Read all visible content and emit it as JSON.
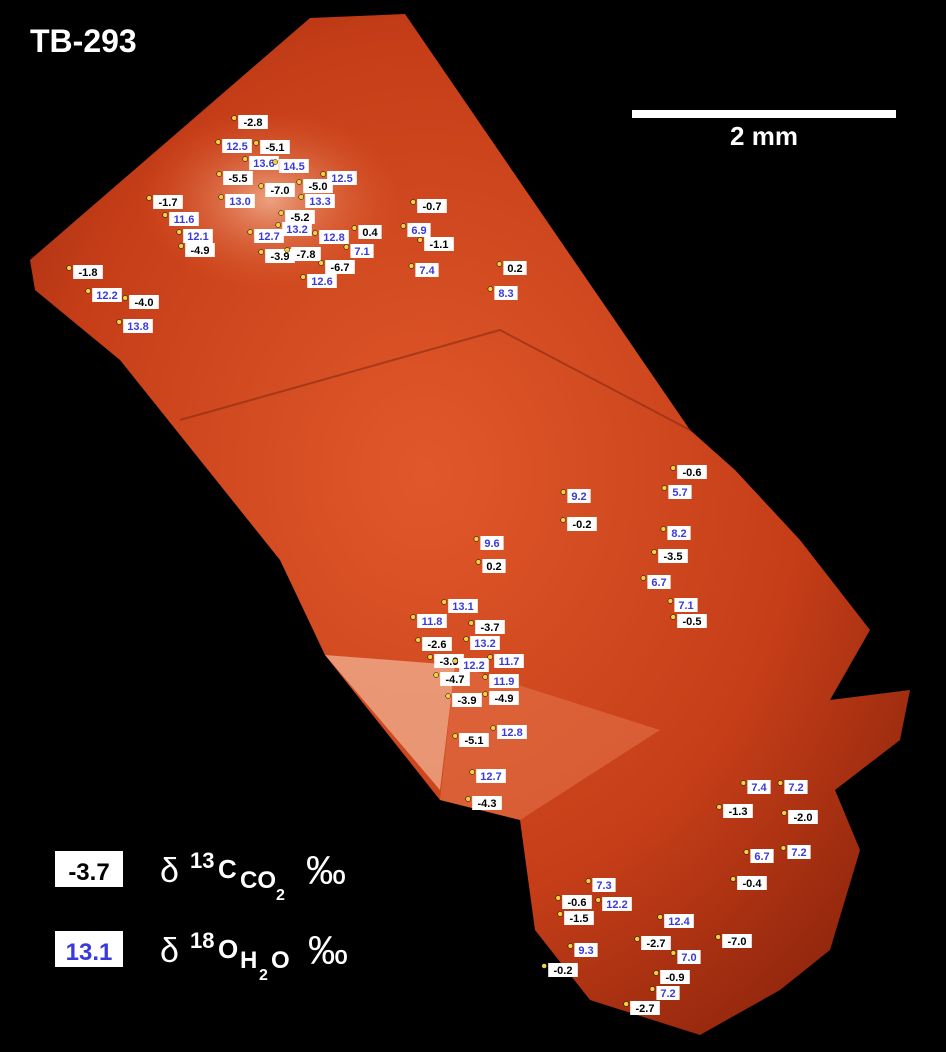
{
  "title": "TB-293",
  "scale_bar": "2 mm",
  "legend": {
    "carbon": {
      "sample": "-3.7",
      "symbol": "δ",
      "isotope": "13",
      "element": "C",
      "species": [
        "CO",
        "2"
      ],
      "unit": "‰"
    },
    "oxygen": {
      "sample": "13.1",
      "symbol": "δ",
      "isotope": "18",
      "element": "O",
      "species": [
        "H",
        "2",
        "O"
      ],
      "unit": "‰"
    }
  },
  "carbon_labels": [
    "-2.8",
    "-5.1",
    "-5.5",
    "-7.0",
    "-5.0",
    "-1.7",
    "-5.2",
    "0.4",
    "-3.9",
    "-7.8",
    "-6.7",
    "-4.9",
    "-1.8",
    "-4.0",
    "-0.7",
    "-1.1",
    "0.2",
    "-0.6",
    "-0.2",
    "-3.5",
    "0.2",
    "-3.7",
    "-2.6",
    "-0.5",
    "-3.9",
    "-4.7",
    "-4.9",
    "-3.9",
    "-5.1",
    "-4.3",
    "-1.3",
    "-2.0",
    "-0.4",
    "-0.6",
    "-1.5",
    "-7.0",
    "-2.7",
    "-0.9",
    "-0.2",
    "-2.7"
  ],
  "oxygen_labels": [
    "12.5",
    "13.6",
    "14.5",
    "12.5",
    "13.0",
    "13.3",
    "11.6",
    "12.1",
    "12.7",
    "13.2",
    "12.8",
    "7.1",
    "12.6",
    "6.9",
    "7.4",
    "12.2",
    "13.8",
    "8.3",
    "9.2",
    "5.7",
    "8.2",
    "9.6",
    "6.7",
    "7.1",
    "13.1",
    "11.8",
    "13.2",
    "12.2",
    "11.7",
    "11.9",
    "12.8",
    "12.7",
    "7.4",
    "7.2",
    "6.7",
    "7.2",
    "7.3",
    "12.2",
    "12.4",
    "7.0",
    "9.3",
    "7.2"
  ]
}
